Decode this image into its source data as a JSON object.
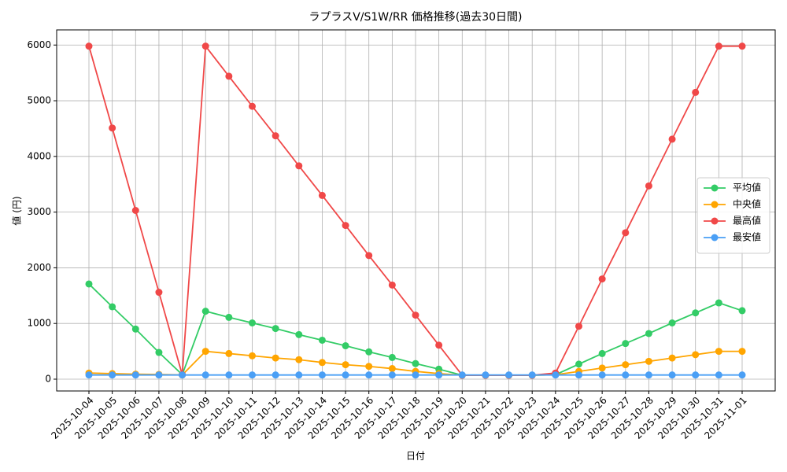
{
  "chart_data": {
    "type": "line",
    "title": "ラプラスV/S1W/RR 価格推移(過去30日間)",
    "x_label": "日付",
    "y_label": "値 (円)",
    "categories": [
      "2025-10-04",
      "2025-10-05",
      "2025-10-06",
      "2025-10-07",
      "2025-10-08",
      "2025-10-09",
      "2025-10-10",
      "2025-10-11",
      "2025-10-12",
      "2025-10-13",
      "2025-10-14",
      "2025-10-15",
      "2025-10-16",
      "2025-10-17",
      "2025-10-18",
      "2025-10-19",
      "2025-10-20",
      "2025-10-21",
      "2025-10-22",
      "2025-10-23",
      "2025-10-24",
      "2025-10-25",
      "2025-10-26",
      "2025-10-27",
      "2025-10-28",
      "2025-10-29",
      "2025-10-30",
      "2025-10-31",
      "2025-11-01"
    ],
    "series": [
      {
        "name": "平均値",
        "color": "#33cc66",
        "values": [
          1710,
          1300,
          900,
          480,
          80,
          1220,
          1110,
          1010,
          910,
          800,
          700,
          600,
          490,
          390,
          280,
          180,
          70,
          70,
          70,
          70,
          80,
          270,
          460,
          640,
          820,
          1010,
          1190,
          1370,
          1230
        ]
      },
      {
        "name": "中央値",
        "color": "#ffa500",
        "values": [
          110,
          100,
          90,
          85,
          75,
          500,
          460,
          420,
          380,
          350,
          300,
          260,
          230,
          190,
          140,
          100,
          70,
          70,
          70,
          70,
          80,
          140,
          200,
          260,
          320,
          380,
          440,
          500,
          500
        ]
      },
      {
        "name": "最高値",
        "color": "#f04848",
        "values": [
          5980,
          4510,
          3030,
          1560,
          80,
          5980,
          5440,
          4900,
          4370,
          3830,
          3300,
          2760,
          2220,
          1690,
          1150,
          610,
          70,
          70,
          70,
          70,
          110,
          950,
          1800,
          2630,
          3470,
          4310,
          5150,
          5980,
          5980
        ]
      },
      {
        "name": "最安値",
        "color": "#4a9ff5",
        "values": [
          75,
          75,
          75,
          75,
          75,
          75,
          75,
          75,
          75,
          75,
          75,
          75,
          75,
          75,
          75,
          75,
          75,
          75,
          75,
          75,
          75,
          75,
          75,
          75,
          75,
          75,
          75,
          75,
          75
        ]
      }
    ],
    "ylim": [
      -212,
      6272
    ],
    "yticks": [
      0,
      1000,
      2000,
      3000,
      4000,
      5000,
      6000
    ],
    "grid": true,
    "legend": "right"
  }
}
